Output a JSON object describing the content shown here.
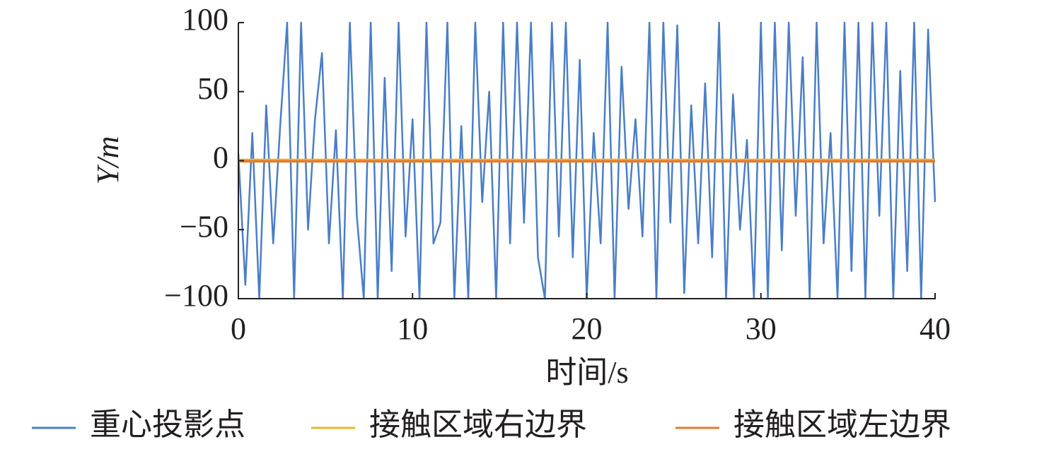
{
  "chart_data": {
    "type": "line",
    "xlabel": "时间/s",
    "ylabel": "Y/m",
    "x": [
      0,
      0.4,
      0.8,
      1.2,
      1.6,
      2,
      2.4,
      2.8,
      3.2,
      3.6,
      4,
      4.4,
      4.8,
      5.2,
      5.6,
      6,
      6.4,
      6.8,
      7.2,
      7.6,
      8,
      8.4,
      8.8,
      9.2,
      9.6,
      10,
      10.4,
      10.8,
      11.2,
      11.6,
      12,
      12.4,
      12.8,
      13.2,
      13.6,
      14,
      14.4,
      14.8,
      15.2,
      15.6,
      16,
      16.4,
      16.8,
      17.2,
      17.6,
      18,
      18.4,
      18.8,
      19.2,
      19.6,
      20,
      20.4,
      20.8,
      21.2,
      21.6,
      22,
      22.4,
      22.8,
      23.2,
      23.6,
      24,
      24.4,
      24.8,
      25.2,
      25.6,
      26,
      26.4,
      26.8,
      27.2,
      27.6,
      28,
      28.4,
      28.8,
      29.2,
      29.6,
      30,
      30.4,
      30.8,
      31.2,
      31.6,
      32,
      32.4,
      32.8,
      33.2,
      33.6,
      34,
      34.4,
      34.8,
      35.2,
      35.6,
      36,
      36.4,
      36.8,
      37.2,
      37.6,
      38,
      38.4,
      38.8,
      39.2,
      39.6,
      40
    ],
    "series": [
      {
        "name": "重心投影点",
        "color": "#4a7ec6",
        "values": [
          5,
          -90,
          20,
          -100,
          40,
          -60,
          25,
          100,
          -100,
          100,
          -50,
          30,
          78,
          -60,
          22,
          -100,
          100,
          -40,
          -100,
          100,
          -100,
          60,
          -80,
          100,
          -55,
          30,
          -100,
          100,
          -60,
          -45,
          100,
          -100,
          25,
          -100,
          100,
          -30,
          50,
          -100,
          100,
          -60,
          100,
          -45,
          100,
          -70,
          -100,
          100,
          -55,
          100,
          -70,
          73,
          -100,
          20,
          -60,
          100,
          -100,
          68,
          -35,
          30,
          -55,
          100,
          -100,
          100,
          -45,
          98,
          -96,
          40,
          -60,
          56,
          -70,
          100,
          -100,
          48,
          -50,
          15,
          -100,
          100,
          -100,
          100,
          -65,
          100,
          -40,
          75,
          -100,
          100,
          -60,
          20,
          -100,
          100,
          -80,
          100,
          -100,
          100,
          -40,
          100,
          -100,
          65,
          -80,
          100,
          -100,
          95,
          -30
        ]
      },
      {
        "name": "接触区域右边界",
        "color": "#e8b631",
        "x": [
          0,
          40
        ],
        "values": [
          0.5,
          0.5
        ]
      },
      {
        "name": "接触区域左边界",
        "color": "#e8792e",
        "x": [
          0,
          40
        ],
        "values": [
          -0.5,
          -0.5
        ]
      }
    ],
    "xlim": [
      0,
      40
    ],
    "xticks": [
      0,
      10,
      20,
      30,
      40
    ],
    "ylim": [
      -100,
      100
    ],
    "yticks": [
      {
        "value": -100,
        "label": "−100"
      },
      {
        "value": -50,
        "label": "−50"
      },
      0,
      50,
      100
    ],
    "grid": false,
    "legend": "bottom"
  }
}
